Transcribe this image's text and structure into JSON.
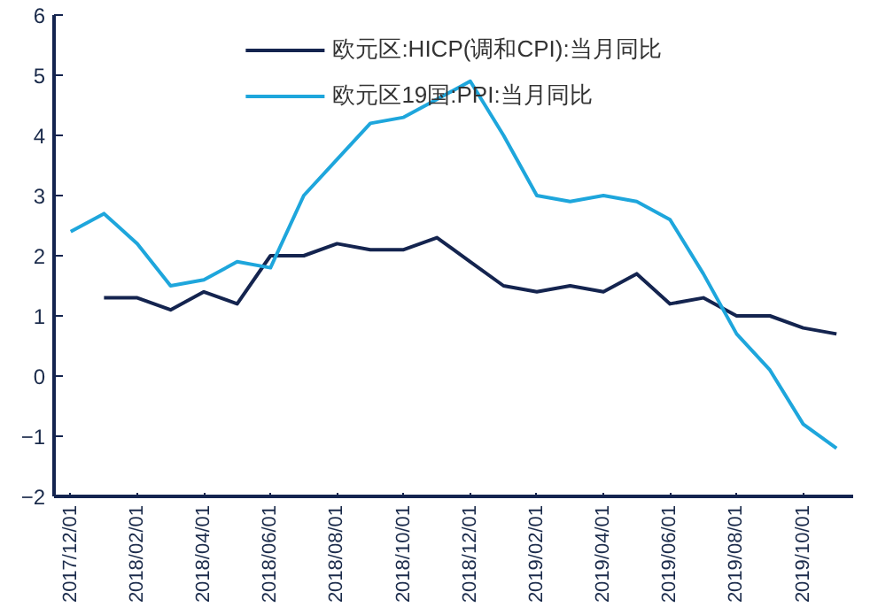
{
  "chart_data": {
    "type": "line",
    "categories": [
      "2017/12/01",
      null,
      "2018/02/01",
      null,
      "2018/04/01",
      null,
      "2018/06/01",
      null,
      "2018/08/01",
      null,
      "2018/10/01",
      null,
      "2018/12/01",
      null,
      "2019/02/01",
      null,
      "2019/04/01",
      null,
      "2019/06/01",
      null,
      "2019/08/01",
      null,
      "2019/10/01",
      null
    ],
    "series": [
      {
        "name": "欧元区:HICP(调和CPI):当月同比",
        "color": "#14244f",
        "values": [
          null,
          1.3,
          1.3,
          1.1,
          1.4,
          1.2,
          2.0,
          2.0,
          2.2,
          2.1,
          2.1,
          2.3,
          1.9,
          1.5,
          1.4,
          1.5,
          1.4,
          1.7,
          1.2,
          1.3,
          1.0,
          1.0,
          0.8,
          0.7
        ]
      },
      {
        "name": "欧元区19国:PPI:当月同比",
        "color": "#1ea6dc",
        "values": [
          2.4,
          2.7,
          2.2,
          1.5,
          1.6,
          1.9,
          1.8,
          3.0,
          3.6,
          4.2,
          4.3,
          4.6,
          4.9,
          4.0,
          3.0,
          2.9,
          3.0,
          2.9,
          2.6,
          1.7,
          0.7,
          0.1,
          -0.8,
          -1.2
        ]
      }
    ],
    "ylim": [
      -2,
      6
    ],
    "yticks": [
      -2,
      -1,
      0,
      1,
      2,
      3,
      4,
      5,
      6
    ],
    "grid": false,
    "legend": "top",
    "marker": "none",
    "line_style": "solid"
  }
}
